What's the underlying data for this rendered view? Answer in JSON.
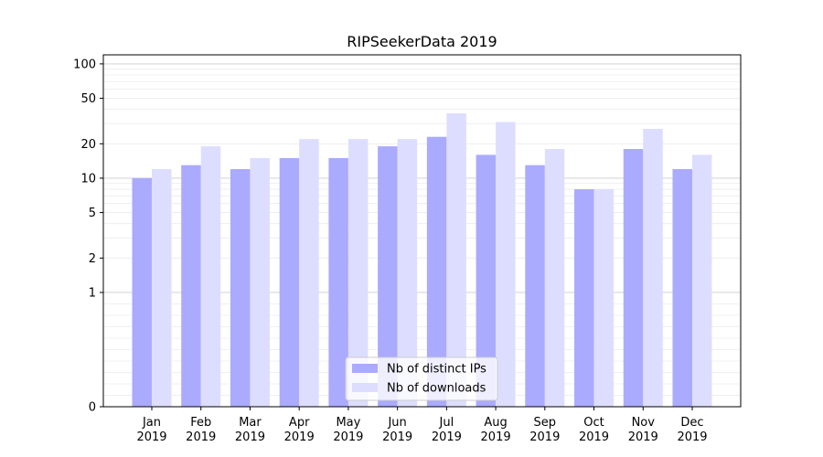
{
  "chart_data": {
    "type": "bar",
    "title": "RIPSeekerData 2019",
    "xlabel": "",
    "ylabel": "",
    "y_scale": "symlog",
    "ylim": [
      0,
      120
    ],
    "y_ticks": [
      0,
      1,
      2,
      5,
      10,
      20,
      50,
      100
    ],
    "categories": [
      [
        "Jan",
        "2019"
      ],
      [
        "Feb",
        "2019"
      ],
      [
        "Mar",
        "2019"
      ],
      [
        "Apr",
        "2019"
      ],
      [
        "May",
        "2019"
      ],
      [
        "Jun",
        "2019"
      ],
      [
        "Jul",
        "2019"
      ],
      [
        "Aug",
        "2019"
      ],
      [
        "Sep",
        "2019"
      ],
      [
        "Oct",
        "2019"
      ],
      [
        "Nov",
        "2019"
      ],
      [
        "Dec",
        "2019"
      ]
    ],
    "series": [
      {
        "name": "Nb of distinct IPs",
        "color": "#aaaaff",
        "values": [
          10,
          13,
          12,
          15,
          15,
          19,
          23,
          16,
          13,
          8,
          18,
          12
        ]
      },
      {
        "name": "Nb of downloads",
        "color": "#ddddff",
        "values": [
          12,
          19,
          15,
          22,
          22,
          22,
          37,
          31,
          18,
          8,
          27,
          16
        ]
      }
    ],
    "grid": true,
    "legend_position": "bottom-center"
  }
}
